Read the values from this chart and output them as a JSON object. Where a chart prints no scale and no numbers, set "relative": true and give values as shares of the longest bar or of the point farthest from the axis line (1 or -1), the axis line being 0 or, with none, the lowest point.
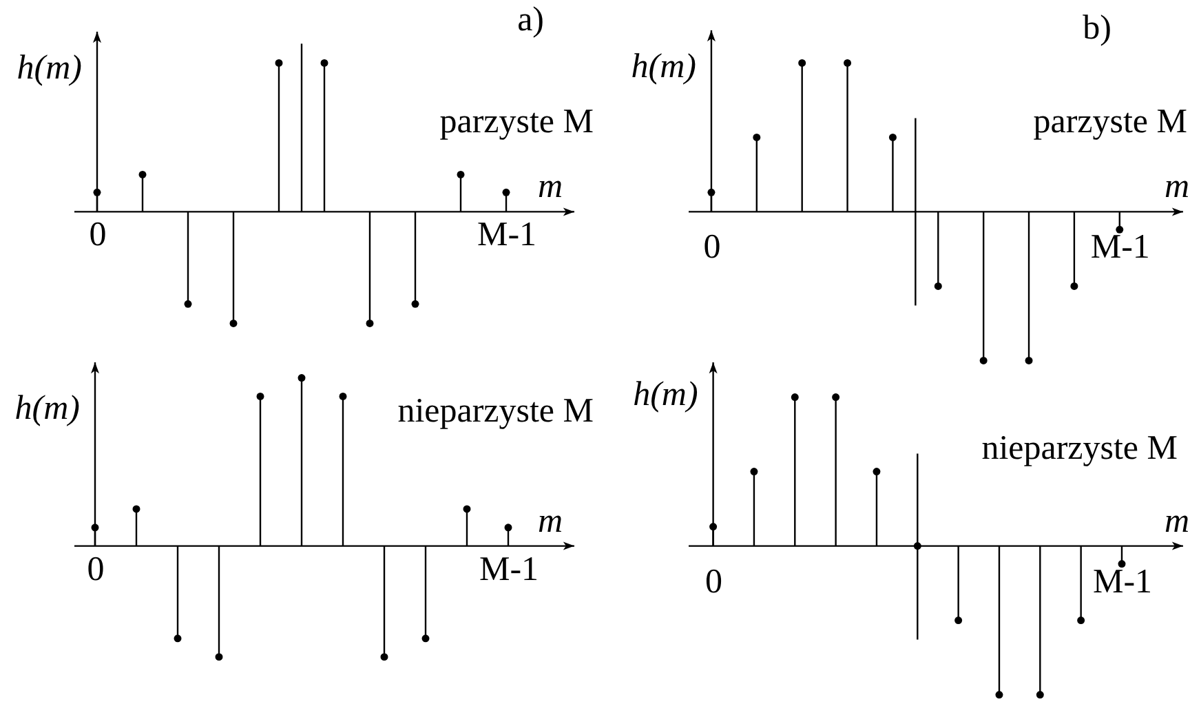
{
  "chart_data": [
    {
      "type": "lollipop",
      "title": "a)",
      "subtitle": "parzyste M",
      "xlabel": "m",
      "ylabel": "h(m)",
      "relative": true,
      "categories": [
        "0",
        null,
        null,
        null,
        null,
        null,
        null,
        null,
        null,
        "M-1"
      ],
      "values": [
        0.13,
        0.25,
        -0.62,
        -0.75,
        1,
        1,
        -0.75,
        -0.62,
        0.25,
        0.13
      ],
      "color": "#000000",
      "marker": "circle"
    },
    {
      "type": "lollipop",
      "title": "b)",
      "subtitle": "parzyste M",
      "xlabel": "m",
      "ylabel": "h(m)",
      "relative": true,
      "categories": [
        "0",
        null,
        null,
        null,
        null,
        null,
        null,
        null,
        null,
        "M-1"
      ],
      "values": [
        0.13,
        0.5,
        1,
        1,
        0.5,
        -0.5,
        -1,
        -1,
        -0.5,
        -0.12
      ],
      "color": "#000000",
      "marker": "circle"
    },
    {
      "type": "lollipop",
      "subtitle": "nieparzyste M",
      "xlabel": "m",
      "ylabel": "h(m)",
      "relative": true,
      "categories": [
        "0",
        null,
        null,
        null,
        null,
        null,
        null,
        null,
        null,
        null,
        "M-1"
      ],
      "values": [
        0.11,
        0.22,
        -0.55,
        -0.66,
        0.89,
        1,
        0.89,
        -0.66,
        -0.55,
        0.22,
        0.11
      ],
      "color": "#000000",
      "marker": "circle"
    },
    {
      "type": "lollipop",
      "subtitle": "nieparzyste M",
      "xlabel": "m",
      "ylabel": "h(m)",
      "relative": true,
      "categories": [
        "0",
        null,
        null,
        null,
        null,
        null,
        null,
        null,
        null,
        null,
        "M-1"
      ],
      "values": [
        0.13,
        0.5,
        1,
        1,
        0.5,
        0,
        -0.5,
        -1,
        -1,
        -0.5,
        -0.12
      ],
      "color": "#000000",
      "marker": "circle"
    }
  ]
}
